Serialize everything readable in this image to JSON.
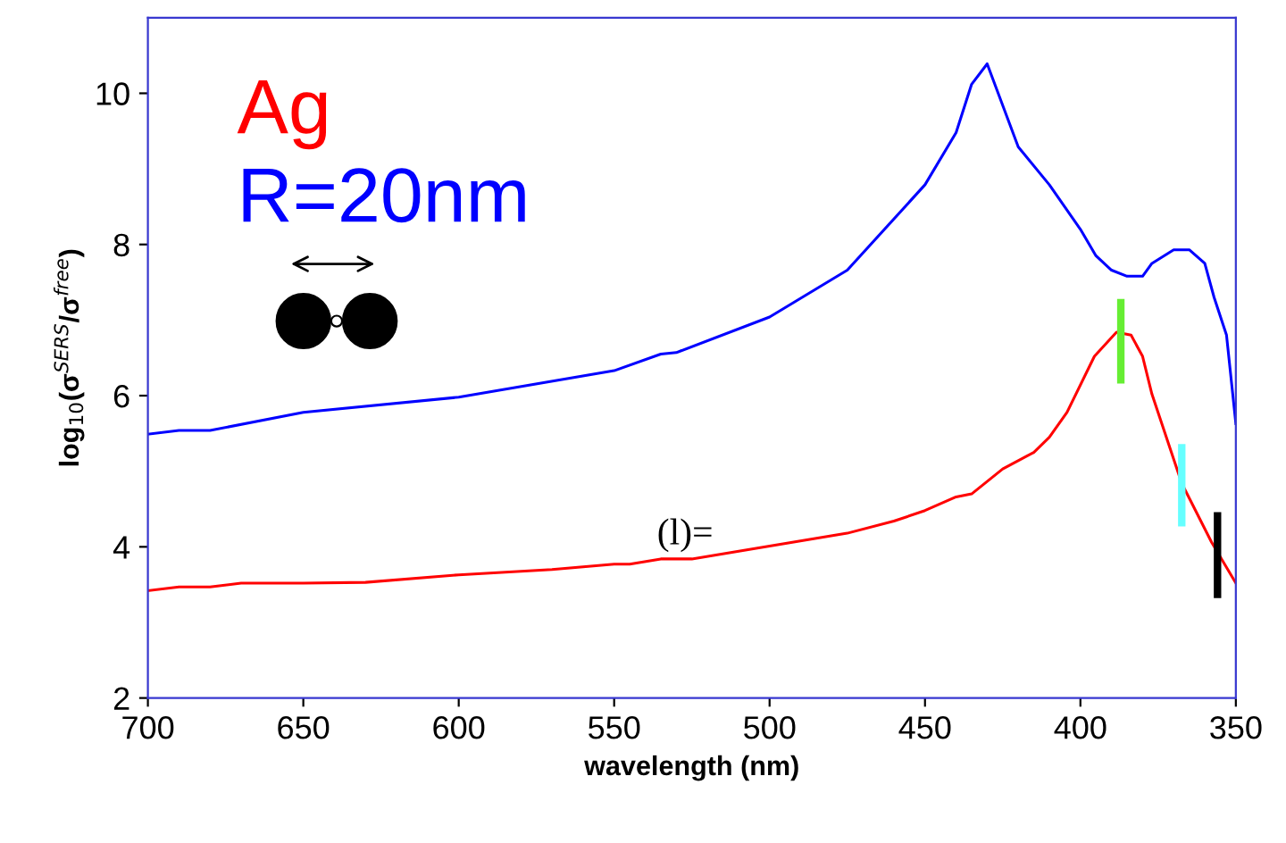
{
  "chart_data": {
    "type": "line",
    "xlabel": "wavelength (nm)",
    "ylabel": "log$_{10}$(σ$^{SERS}$/σ$^{free}$)",
    "xlim": [
      700,
      350
    ],
    "xticks": [
      700,
      650,
      600,
      550,
      500,
      450,
      400,
      350
    ],
    "ylim": [
      2,
      11
    ],
    "yticks": [
      2,
      4,
      6,
      8,
      10
    ],
    "grid": false,
    "legend": false,
    "marker": "none",
    "line_style": "solid",
    "series": [
      {
        "color": "#0000ff",
        "x": [
          700,
          690,
          680,
          650,
          600,
          550,
          535,
          530,
          500,
          475,
          450,
          440,
          435,
          430,
          420,
          410,
          400,
          395,
          390,
          385,
          380,
          377,
          370,
          365,
          360,
          357,
          353,
          350
        ],
        "values": [
          5.49,
          5.54,
          5.54,
          5.78,
          5.98,
          6.33,
          6.55,
          6.57,
          7.04,
          7.66,
          8.79,
          9.48,
          10.12,
          10.39,
          9.29,
          8.79,
          8.2,
          7.85,
          7.66,
          7.58,
          7.58,
          7.75,
          7.93,
          7.93,
          7.75,
          7.3,
          6.8,
          5.63
        ]
      },
      {
        "color": "#ff0000",
        "x": [
          700,
          690,
          680,
          670,
          650,
          630,
          600,
          570,
          550,
          545,
          535,
          525,
          500,
          475,
          460,
          450,
          440,
          435,
          425,
          415,
          410,
          404.3,
          395.5,
          388.4,
          383.7,
          380,
          377,
          367.4,
          357.8,
          350
        ],
        "values": [
          3.42,
          3.47,
          3.47,
          3.52,
          3.52,
          3.53,
          3.63,
          3.7,
          3.77,
          3.77,
          3.84,
          3.84,
          4.01,
          4.18,
          4.34,
          4.48,
          4.66,
          4.7,
          5.03,
          5.25,
          5.45,
          5.78,
          6.52,
          6.84,
          6.8,
          6.52,
          6.02,
          4.84,
          4.06,
          3.52
        ]
      },
      {
        "color": "#66ee33",
        "x": [
          387,
          387
        ],
        "values": [
          6.21,
          7.23
        ]
      },
      {
        "color": "#66ffff",
        "x": [
          367.4,
          367.4
        ],
        "values": [
          4.32,
          5.31
        ]
      },
      {
        "color": "#000000",
        "x": [
          355.9,
          355.9
        ],
        "values": [
          3.37,
          4.41
        ]
      }
    ],
    "annotations": [
      "Ag",
      "R=20nm",
      "(l)="
    ]
  }
}
